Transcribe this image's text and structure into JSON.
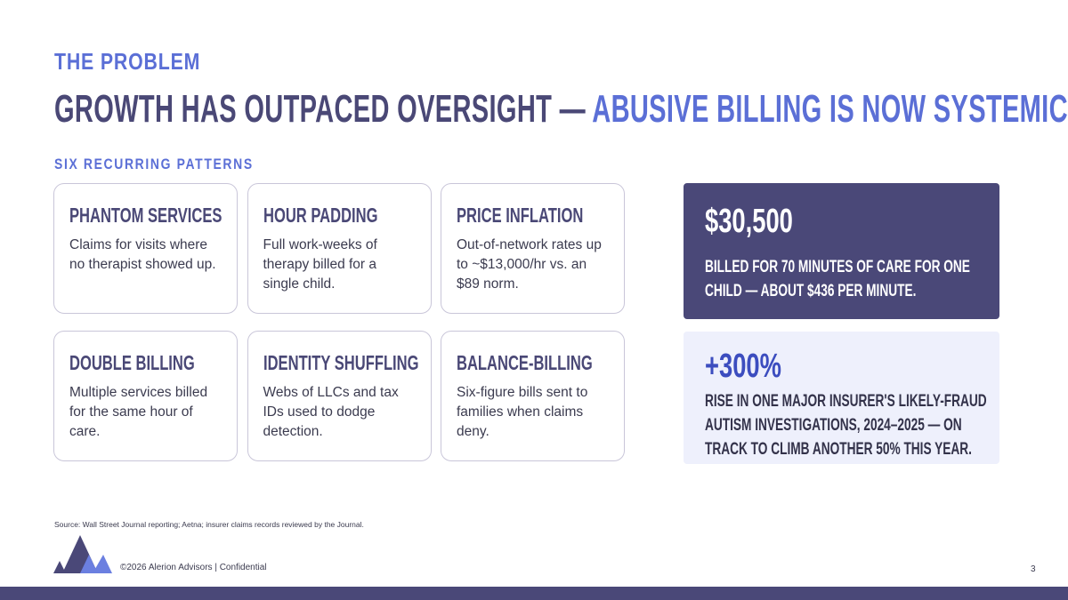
{
  "header": {
    "eyebrow": "THE PROBLEM",
    "headline_main": "GROWTH HAS OUTPACED OVERSIGHT — ",
    "headline_accent": "ABUSIVE BILLING IS NOW SYSTEMIC."
  },
  "patterns": {
    "label": "SIX RECURRING PATTERNS",
    "cards": [
      {
        "title": "PHANTOM SERVICES",
        "body": "Claims for visits where no therapist showed up."
      },
      {
        "title": "HOUR PADDING",
        "body": "Full work-weeks of therapy billed for a single child."
      },
      {
        "title": "PRICE INFLATION",
        "body": "Out-of-network rates up to ~$13,000/hr vs. an $89 norm."
      },
      {
        "title": "DOUBLE BILLING",
        "body": "Multiple services billed for the same hour of care."
      },
      {
        "title": "IDENTITY SHUFFLING",
        "body": "Webs of LLCs and tax IDs used to dodge detection."
      },
      {
        "title": "BALANCE-BILLING",
        "body": "Six-figure bills sent to families when claims deny."
      }
    ]
  },
  "stats": {
    "primary": {
      "value": "$30,500",
      "description": "BILLED FOR 70 MINUTES OF CARE FOR ONE CHILD — ABOUT $436 PER MINUTE."
    },
    "secondary": {
      "value": "+300%",
      "description": "RISE IN ONE MAJOR INSURER'S LIKELY-FRAUD AUTISM INVESTIGATIONS, 2024–2025 — ON TRACK TO CLIMB ANOTHER 50% THIS YEAR."
    }
  },
  "footer": {
    "source": "Source: Wall Street Journal reporting; Aetna; insurer claims records reviewed by the Journal.",
    "copyright": "©2026 Alerion Advisors | Confidential",
    "page_number": "3"
  },
  "colors": {
    "brand_dark": "#4a4878",
    "accent_blue": "#5b6fd6",
    "light_panel": "#eef0fc"
  },
  "icons": {
    "logo": "alerion-mountain-logo"
  }
}
